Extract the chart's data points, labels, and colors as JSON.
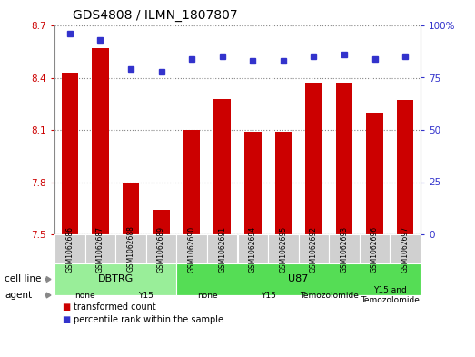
{
  "title": "GDS4808 / ILMN_1807807",
  "samples": [
    "GSM1062686",
    "GSM1062687",
    "GSM1062688",
    "GSM1062689",
    "GSM1062690",
    "GSM1062691",
    "GSM1062694",
    "GSM1062695",
    "GSM1062692",
    "GSM1062693",
    "GSM1062696",
    "GSM1062697"
  ],
  "bar_values": [
    8.43,
    8.57,
    7.8,
    7.64,
    8.1,
    8.28,
    8.09,
    8.09,
    8.37,
    8.37,
    8.2,
    8.27
  ],
  "dot_values": [
    96,
    93,
    79,
    78,
    84,
    85,
    83,
    83,
    85,
    86,
    84,
    85
  ],
  "bar_color": "#cc0000",
  "dot_color": "#3333cc",
  "ylim_left": [
    7.5,
    8.7
  ],
  "ylim_right": [
    0,
    100
  ],
  "yticks_left": [
    7.5,
    7.8,
    8.1,
    8.4,
    8.7
  ],
  "yticks_right": [
    0,
    25,
    50,
    75,
    100
  ],
  "ytick_labels_right": [
    "0",
    "25",
    "50",
    "75",
    "100%"
  ],
  "cell_line_groups": [
    {
      "label": "DBTRG",
      "start": 0,
      "end": 3,
      "color": "#99ee99"
    },
    {
      "label": "U87",
      "start": 4,
      "end": 11,
      "color": "#55dd55"
    }
  ],
  "agent_groups": [
    {
      "label": "none",
      "start": 0,
      "end": 1,
      "color": "#f0b8f0"
    },
    {
      "label": "Y15",
      "start": 2,
      "end": 3,
      "color": "#ee88ee"
    },
    {
      "label": "none",
      "start": 4,
      "end": 5,
      "color": "#f0b8f0"
    },
    {
      "label": "Y15",
      "start": 6,
      "end": 7,
      "color": "#ee88ee"
    },
    {
      "label": "Temozolomide",
      "start": 8,
      "end": 9,
      "color": "#dd77dd"
    },
    {
      "label": "Y15 and\nTemozolomide",
      "start": 10,
      "end": 11,
      "color": "#cc66cc"
    }
  ],
  "bar_baseline": 7.5,
  "plot_bg": "#ffffff",
  "fig_bg": "#ffffff",
  "tick_label_color_left": "#cc0000",
  "tick_label_color_right": "#3333cc",
  "sample_box_color": "#d0d0d0",
  "legend_items": [
    {
      "label": "transformed count",
      "color": "#cc0000"
    },
    {
      "label": "percentile rank within the sample",
      "color": "#3333cc"
    }
  ]
}
